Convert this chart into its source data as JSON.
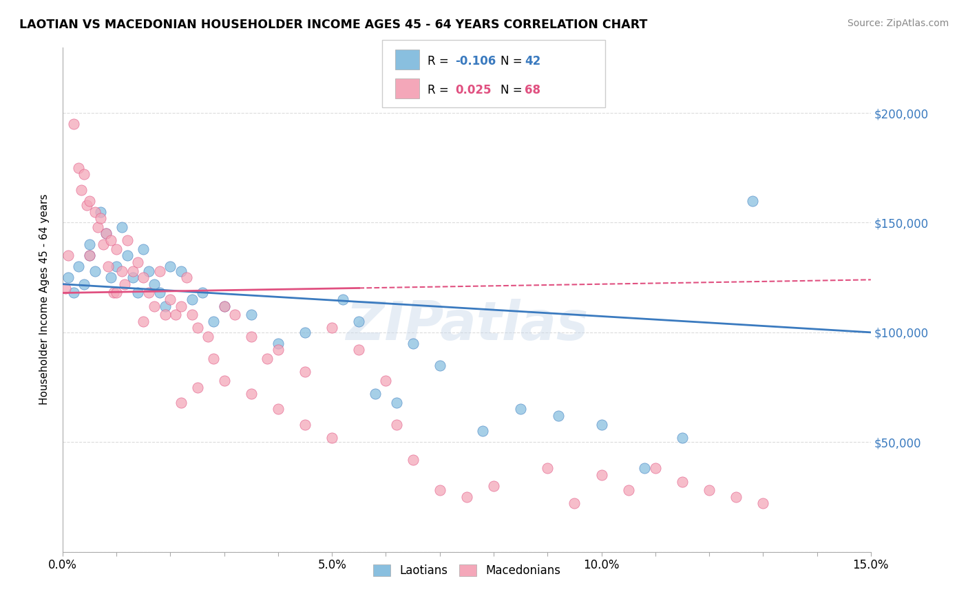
{
  "title": "LAOTIAN VS MACEDONIAN HOUSEHOLDER INCOME AGES 45 - 64 YEARS CORRELATION CHART",
  "source": "Source: ZipAtlas.com",
  "xlabel": "",
  "ylabel": "Householder Income Ages 45 - 64 years",
  "xlim": [
    0.0,
    15.0
  ],
  "ylim": [
    0,
    230000
  ],
  "yticks": [
    0,
    50000,
    100000,
    150000,
    200000
  ],
  "ytick_labels": [
    "",
    "$50,000",
    "$100,000",
    "$150,000",
    "$200,000"
  ],
  "legend_laotian_R": "-0.106",
  "legend_laotian_N": "42",
  "legend_macedonian_R": "0.025",
  "legend_macedonian_N": "68",
  "laotian_color": "#89bfdf",
  "macedonian_color": "#f4a7b9",
  "laotian_line_color": "#3a7abf",
  "macedonian_line_color": "#e05080",
  "background_color": "#ffffff",
  "watermark": "ZIPatlas",
  "laotian_trend_x0": 0.0,
  "laotian_trend_y0": 122000,
  "laotian_trend_x1": 15.0,
  "laotian_trend_y1": 100000,
  "macedonian_trend_x0": 0.0,
  "macedonian_trend_y0": 118000,
  "macedonian_trend_x1": 15.0,
  "macedonian_trend_y1": 124000,
  "macedonian_solid_end_x": 5.5,
  "laotian_x": [
    0.1,
    0.2,
    0.3,
    0.4,
    0.5,
    0.5,
    0.6,
    0.7,
    0.8,
    0.9,
    1.0,
    1.1,
    1.2,
    1.3,
    1.4,
    1.5,
    1.6,
    1.7,
    1.8,
    1.9,
    2.0,
    2.2,
    2.4,
    2.6,
    2.8,
    3.0,
    3.5,
    4.0,
    4.5,
    5.2,
    5.5,
    5.8,
    6.2,
    6.5,
    7.0,
    7.8,
    8.5,
    9.2,
    10.0,
    10.8,
    11.5,
    12.8
  ],
  "laotian_y": [
    125000,
    118000,
    130000,
    122000,
    140000,
    135000,
    128000,
    155000,
    145000,
    125000,
    130000,
    148000,
    135000,
    125000,
    118000,
    138000,
    128000,
    122000,
    118000,
    112000,
    130000,
    128000,
    115000,
    118000,
    105000,
    112000,
    108000,
    95000,
    100000,
    115000,
    105000,
    72000,
    68000,
    95000,
    85000,
    55000,
    65000,
    62000,
    58000,
    38000,
    52000,
    160000
  ],
  "macedonian_x": [
    0.05,
    0.1,
    0.2,
    0.3,
    0.35,
    0.4,
    0.45,
    0.5,
    0.5,
    0.6,
    0.65,
    0.7,
    0.75,
    0.8,
    0.85,
    0.9,
    0.95,
    1.0,
    1.0,
    1.1,
    1.15,
    1.2,
    1.3,
    1.4,
    1.5,
    1.5,
    1.6,
    1.7,
    1.8,
    1.9,
    2.0,
    2.1,
    2.2,
    2.3,
    2.4,
    2.5,
    2.7,
    3.0,
    3.2,
    3.5,
    3.8,
    4.0,
    4.5,
    5.0,
    5.5,
    6.0,
    6.2,
    6.5,
    7.0,
    7.5,
    8.0,
    9.0,
    9.5,
    10.0,
    10.5,
    11.0,
    11.5,
    12.0,
    12.5,
    13.0,
    2.2,
    2.5,
    2.8,
    3.0,
    3.5,
    4.0,
    4.5,
    5.0
  ],
  "macedonian_y": [
    120000,
    135000,
    195000,
    175000,
    165000,
    172000,
    158000,
    160000,
    135000,
    155000,
    148000,
    152000,
    140000,
    145000,
    130000,
    142000,
    118000,
    138000,
    118000,
    128000,
    122000,
    142000,
    128000,
    132000,
    125000,
    105000,
    118000,
    112000,
    128000,
    108000,
    115000,
    108000,
    112000,
    125000,
    108000,
    102000,
    98000,
    112000,
    108000,
    98000,
    88000,
    92000,
    82000,
    102000,
    92000,
    78000,
    58000,
    42000,
    28000,
    25000,
    30000,
    38000,
    22000,
    35000,
    28000,
    38000,
    32000,
    28000,
    25000,
    22000,
    68000,
    75000,
    88000,
    78000,
    72000,
    65000,
    58000,
    52000
  ]
}
